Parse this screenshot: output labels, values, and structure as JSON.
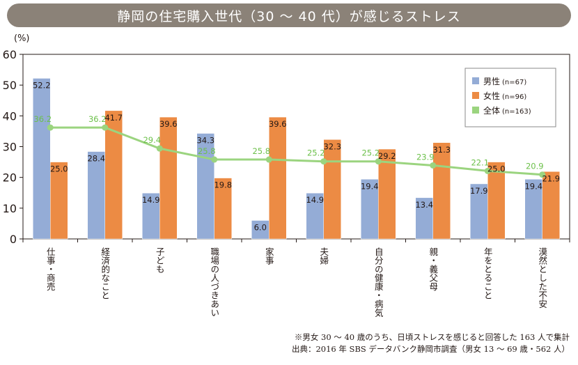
{
  "chart_data": {
    "type": "bar",
    "title": "静岡の住宅購入世代（30 〜 40 代）が感じるストレス",
    "ylabel": "(%)",
    "ylim": [
      0,
      60
    ],
    "yticks": [
      0,
      10,
      20,
      30,
      40,
      50,
      60
    ],
    "categories": [
      "仕事・商売",
      "経済的なこと",
      "子ども",
      "職場の人づきあい",
      "家事",
      "夫婦",
      "自分の健康・病気",
      "親・義父母",
      "年をとること",
      "漠然とした不安"
    ],
    "series": [
      {
        "name": "男性",
        "n_label": "(n=67)",
        "color": "#94acd6",
        "kind": "bar",
        "values": [
          52.2,
          28.4,
          14.9,
          34.3,
          6.0,
          14.9,
          19.4,
          13.4,
          17.9,
          19.4
        ]
      },
      {
        "name": "女性",
        "n_label": "(n=96)",
        "color": "#ec8b44",
        "kind": "bar",
        "values": [
          25.0,
          41.7,
          39.6,
          19.8,
          39.6,
          32.3,
          29.2,
          31.3,
          25.0,
          21.9
        ]
      },
      {
        "name": "全体",
        "n_label": "(n=163)",
        "color": "#9bd47f",
        "kind": "line",
        "values": [
          36.2,
          36.2,
          29.4,
          25.8,
          25.8,
          25.2,
          25.2,
          23.9,
          22.1,
          20.9
        ]
      }
    ],
    "legend_position": "top-right"
  },
  "notes": {
    "line1": "※男女 30 〜 40 歳のうち、日頃ストレスを感じると回答した 163 人で集計",
    "line2": "出典：2016 年 SBS データバンク静岡市調査（男女 13 〜 69 歳・562 人）"
  }
}
